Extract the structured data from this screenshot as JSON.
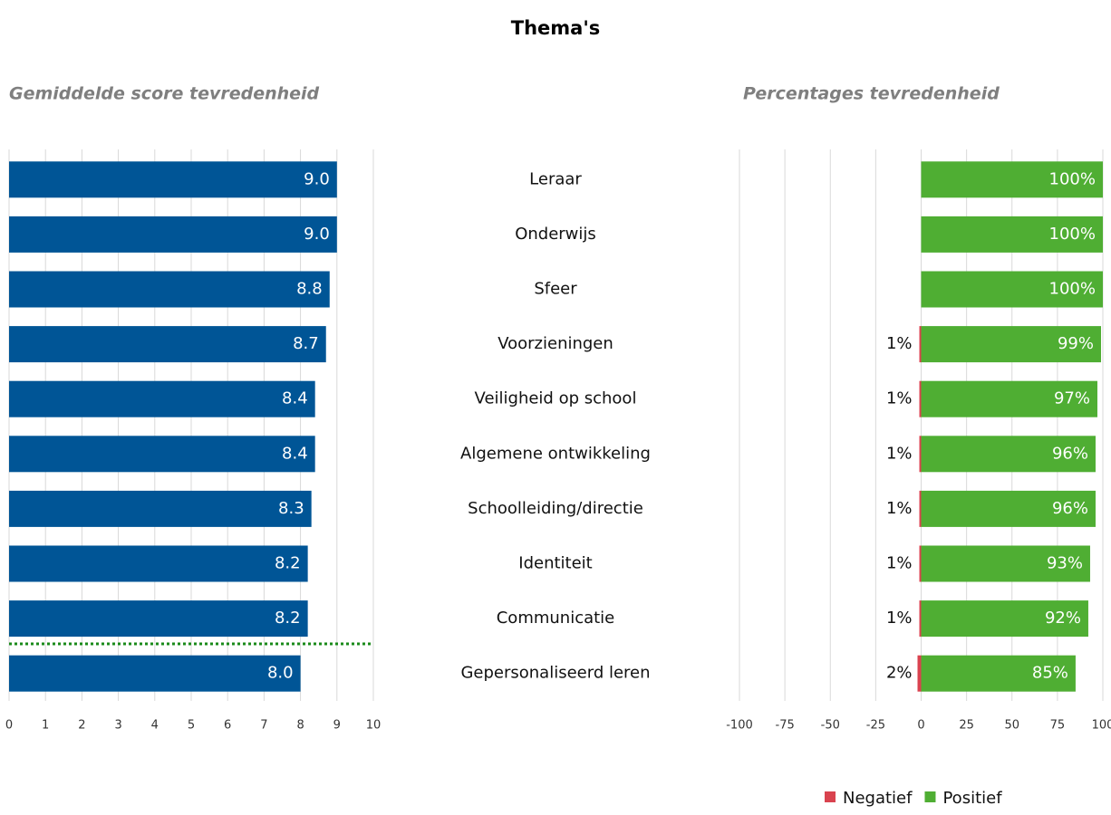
{
  "title": "Thema's",
  "chart_data": [
    {
      "type": "hbar",
      "title": "Gemiddelde score tevredenheid",
      "categories": [
        "Leraar",
        "Onderwijs",
        "Sfeer",
        "Voorzieningen",
        "Veiligheid op school",
        "Algemene ontwikkeling",
        "Schoolleiding/directie",
        "Identiteit",
        "Communicatie",
        "Gepersonaliseerd leren"
      ],
      "values": [
        9.0,
        9.0,
        8.8,
        8.7,
        8.4,
        8.4,
        8.3,
        8.2,
        8.2,
        8.0
      ],
      "value_labels": [
        "9.0",
        "9.0",
        "8.8",
        "8.7",
        "8.4",
        "8.4",
        "8.3",
        "8.2",
        "8.2",
        "8.0"
      ],
      "color": "#005596",
      "xlim": [
        0,
        10
      ],
      "xticks": [
        0,
        1,
        2,
        3,
        4,
        5,
        6,
        7,
        8,
        9,
        10
      ],
      "grid": true
    },
    {
      "type": "diverging",
      "title": "Percentages tevredenheid",
      "series": [
        {
          "name": "Negatief",
          "color": "#d9434f",
          "values": [
            0,
            0,
            0,
            -1,
            -1,
            -1,
            -1,
            -1,
            -1,
            -2
          ],
          "value_labels": [
            null,
            null,
            null,
            "1%",
            "1%",
            "1%",
            "1%",
            "1%",
            "1%",
            "2%"
          ]
        },
        {
          "name": "Positief",
          "color": "#4fae33",
          "values": [
            100,
            100,
            100,
            99,
            97,
            96,
            96,
            93,
            92,
            85
          ],
          "value_labels": [
            "100%",
            "100%",
            "100%",
            "99%",
            "97%",
            "96%",
            "96%",
            "93%",
            "92%",
            "85%"
          ]
        }
      ],
      "xlim": [
        -100,
        100
      ],
      "xticks": [
        -100,
        -75,
        -50,
        -25,
        0,
        25,
        50,
        75,
        100
      ],
      "grid": true,
      "legend": "bottom-right"
    }
  ]
}
